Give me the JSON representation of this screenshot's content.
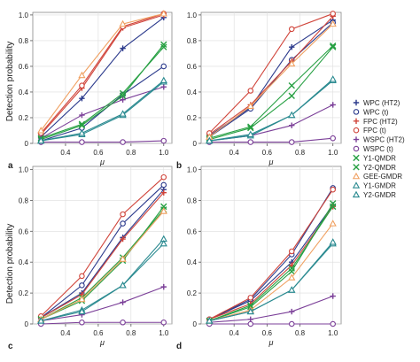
{
  "figure": {
    "ylabel": "Detection probability",
    "xlabel": "μ"
  },
  "legend": {
    "items": [
      {
        "label": "WPC (HT2)",
        "color": "#2b3a8c",
        "marker": "plus"
      },
      {
        "label": "WPC (t)",
        "color": "#2b3a8c",
        "marker": "circle"
      },
      {
        "label": "FPC (HT2)",
        "color": "#d0443a",
        "marker": "plus"
      },
      {
        "label": "FPC (t)",
        "color": "#d0443a",
        "marker": "circle"
      },
      {
        "label": "WSPC (HT2)",
        "color": "#7b3f98",
        "marker": "plus"
      },
      {
        "label": "WSPC (t)",
        "color": "#7b3f98",
        "marker": "circle"
      },
      {
        "label": "Y1-QMDR",
        "color": "#27a043",
        "marker": "cross"
      },
      {
        "label": "Y2-QMDR",
        "color": "#27a043",
        "marker": "cross"
      },
      {
        "label": "GEE-GMDR",
        "color": "#f0a060",
        "marker": "triangle"
      },
      {
        "label": "Y1-GMDR",
        "color": "#2a8a90",
        "marker": "triangle"
      },
      {
        "label": "Y2-GMDR",
        "color": "#2a8a90",
        "marker": "triangle"
      }
    ]
  },
  "chart_data": [
    {
      "type": "line",
      "panel_label": "a",
      "x": [
        0.25,
        0.5,
        0.75,
        1.0
      ],
      "xticks": [
        "0.4",
        "0.6",
        "0.8",
        "1.0"
      ],
      "yticks": [
        "0",
        "0.2",
        "0.4",
        "0.6",
        "0.8",
        "1.0"
      ],
      "xlim": [
        0.2,
        1.05
      ],
      "ylim": [
        0,
        1.02
      ],
      "series": [
        {
          "name": "WPC (HT2)",
          "values": [
            0.05,
            0.35,
            0.74,
            0.98
          ]
        },
        {
          "name": "WPC (t)",
          "values": [
            0.02,
            0.12,
            0.38,
            0.6
          ]
        },
        {
          "name": "FPC (HT2)",
          "values": [
            0.07,
            0.43,
            0.9,
            1.0
          ]
        },
        {
          "name": "FPC (t)",
          "values": [
            0.08,
            0.45,
            0.91,
            1.01
          ]
        },
        {
          "name": "WSPC (HT2)",
          "values": [
            0.04,
            0.22,
            0.34,
            0.44
          ]
        },
        {
          "name": "WSPC (t)",
          "values": [
            0.01,
            0.01,
            0.01,
            0.02
          ]
        },
        {
          "name": "Y1-QMDR",
          "values": [
            0.04,
            0.15,
            0.39,
            0.75
          ]
        },
        {
          "name": "Y2-QMDR",
          "values": [
            0.03,
            0.14,
            0.37,
            0.77
          ]
        },
        {
          "name": "GEE-GMDR",
          "values": [
            0.1,
            0.53,
            0.93,
            1.01
          ]
        },
        {
          "name": "Y1-GMDR",
          "values": [
            0.02,
            0.07,
            0.22,
            0.48
          ]
        },
        {
          "name": "Y2-GMDR",
          "values": [
            0.02,
            0.08,
            0.23,
            0.49
          ]
        }
      ]
    },
    {
      "type": "line",
      "panel_label": "b",
      "x": [
        0.25,
        0.5,
        0.75,
        1.0
      ],
      "xticks": [
        "0.4",
        "0.6",
        "0.8",
        "1.0"
      ],
      "yticks": [
        "0",
        "0.2",
        "0.4",
        "0.6",
        "0.8",
        "1.0"
      ],
      "xlim": [
        0.2,
        1.05
      ],
      "ylim": [
        0,
        1.02
      ],
      "series": [
        {
          "name": "WPC (HT2)",
          "values": [
            0.06,
            0.28,
            0.75,
            0.96
          ]
        },
        {
          "name": "WPC (t)",
          "values": [
            0.05,
            0.27,
            0.65,
            0.94
          ]
        },
        {
          "name": "FPC (HT2)",
          "values": [
            0.07,
            0.3,
            0.64,
            0.99
          ]
        },
        {
          "name": "FPC (t)",
          "values": [
            0.08,
            0.41,
            0.89,
            1.01
          ]
        },
        {
          "name": "WSPC (HT2)",
          "values": [
            0.02,
            0.06,
            0.14,
            0.3
          ]
        },
        {
          "name": "WSPC (t)",
          "values": [
            0.01,
            0.01,
            0.01,
            0.04
          ]
        },
        {
          "name": "Y1-QMDR",
          "values": [
            0.04,
            0.13,
            0.45,
            0.76
          ]
        },
        {
          "name": "Y2-QMDR",
          "values": [
            0.03,
            0.12,
            0.37,
            0.75
          ]
        },
        {
          "name": "GEE-GMDR",
          "values": [
            0.05,
            0.29,
            0.62,
            0.93
          ]
        },
        {
          "name": "Y1-GMDR",
          "values": [
            0.02,
            0.06,
            0.22,
            0.49
          ]
        },
        {
          "name": "Y2-GMDR",
          "values": [
            0.02,
            0.07,
            0.22,
            0.5
          ]
        }
      ]
    },
    {
      "type": "line",
      "panel_label": "c",
      "x": [
        0.25,
        0.5,
        0.75,
        1.0
      ],
      "xticks": [
        "0.4",
        "0.6",
        "0.8",
        "1.0"
      ],
      "yticks": [
        "0",
        "0.2",
        "0.4",
        "0.6",
        "0.8",
        "1.0"
      ],
      "xlim": [
        0.2,
        1.05
      ],
      "ylim": [
        0,
        1.02
      ],
      "series": [
        {
          "name": "WPC (HT2)",
          "values": [
            0.04,
            0.2,
            0.56,
            0.87
          ]
        },
        {
          "name": "WPC (t)",
          "values": [
            0.04,
            0.25,
            0.65,
            0.9
          ]
        },
        {
          "name": "FPC (HT2)",
          "values": [
            0.04,
            0.19,
            0.55,
            0.85
          ]
        },
        {
          "name": "FPC (t)",
          "values": [
            0.05,
            0.31,
            0.71,
            0.95
          ]
        },
        {
          "name": "WSPC (HT2)",
          "values": [
            0.02,
            0.06,
            0.14,
            0.24
          ]
        },
        {
          "name": "WSPC (t)",
          "values": [
            0.0,
            0.01,
            0.01,
            0.01
          ]
        },
        {
          "name": "Y1-QMDR",
          "values": [
            0.03,
            0.17,
            0.43,
            0.74
          ]
        },
        {
          "name": "Y2-QMDR",
          "values": [
            0.03,
            0.15,
            0.41,
            0.76
          ]
        },
        {
          "name": "GEE-GMDR",
          "values": [
            0.03,
            0.16,
            0.42,
            0.73
          ]
        },
        {
          "name": "Y1-GMDR",
          "values": [
            0.02,
            0.09,
            0.25,
            0.55
          ]
        },
        {
          "name": "Y2-GMDR",
          "values": [
            0.02,
            0.08,
            0.25,
            0.52
          ]
        }
      ]
    },
    {
      "type": "line",
      "panel_label": "d",
      "x": [
        0.25,
        0.5,
        0.75,
        1.0
      ],
      "xticks": [
        "0.4",
        "0.6",
        "0.8",
        "1.0"
      ],
      "yticks": [
        "0",
        "0.2",
        "0.4",
        "0.6",
        "0.8",
        "1.0"
      ],
      "xlim": [
        0.2,
        1.05
      ],
      "ylim": [
        0,
        1.02
      ],
      "series": [
        {
          "name": "WPC (HT2)",
          "values": [
            0.03,
            0.15,
            0.4,
            0.77
          ]
        },
        {
          "name": "WPC (t)",
          "values": [
            0.03,
            0.16,
            0.45,
            0.88
          ]
        },
        {
          "name": "FPC (HT2)",
          "values": [
            0.03,
            0.13,
            0.38,
            0.76
          ]
        },
        {
          "name": "FPC (t)",
          "values": [
            0.03,
            0.17,
            0.47,
            0.87
          ]
        },
        {
          "name": "WSPC (HT2)",
          "values": [
            0.01,
            0.03,
            0.08,
            0.18
          ]
        },
        {
          "name": "WSPC (t)",
          "values": [
            0.0,
            0.0,
            0.0,
            0.0
          ]
        },
        {
          "name": "Y1-QMDR",
          "values": [
            0.02,
            0.12,
            0.36,
            0.76
          ]
        },
        {
          "name": "Y2-QMDR",
          "values": [
            0.02,
            0.11,
            0.34,
            0.78
          ]
        },
        {
          "name": "GEE-GMDR",
          "values": [
            0.02,
            0.09,
            0.3,
            0.65
          ]
        },
        {
          "name": "Y1-GMDR",
          "values": [
            0.02,
            0.08,
            0.22,
            0.52
          ]
        },
        {
          "name": "Y2-GMDR",
          "values": [
            0.02,
            0.08,
            0.22,
            0.53
          ]
        }
      ]
    }
  ]
}
